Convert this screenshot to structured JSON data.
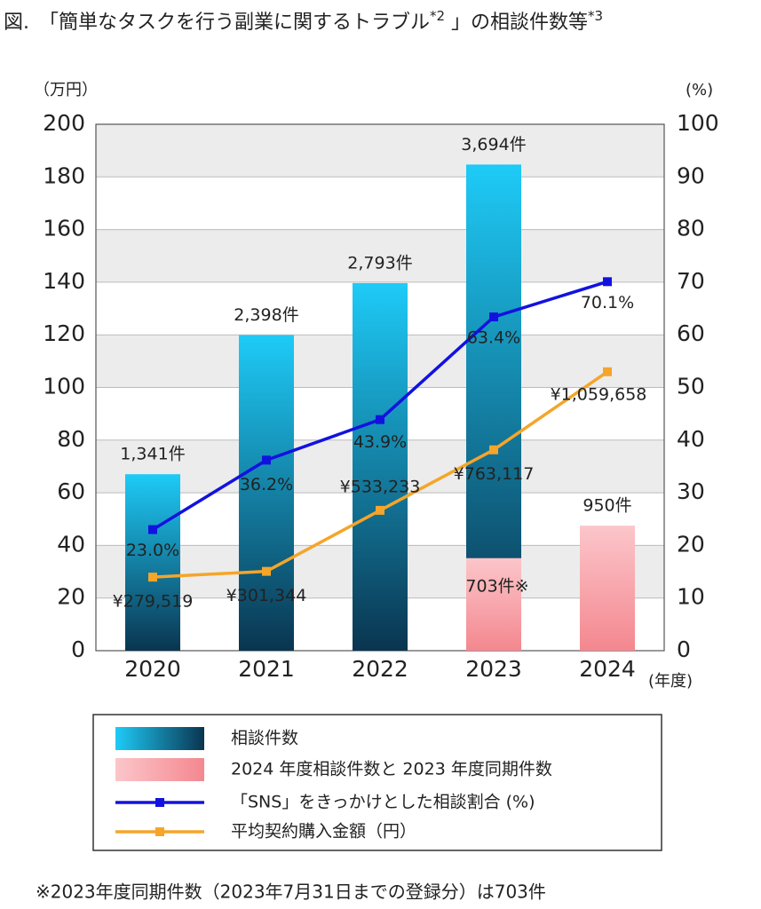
{
  "chart_data": {
    "type": "bar_line",
    "title_parts": [
      "図.　「簡単なタスクを行う副業に関するトラブル",
      "*2",
      " 」の相談件数等",
      "*3"
    ],
    "y_unit": "（万円）",
    "y2_unit": "(%)",
    "x_unit": "(年度)",
    "categories": [
      "2020",
      "2021",
      "2022",
      "2023",
      "2024"
    ],
    "ylim": [
      0,
      200
    ],
    "yticks": [
      0,
      20,
      40,
      60,
      80,
      100,
      120,
      140,
      160,
      180,
      200
    ],
    "y2lim": [
      0,
      100
    ],
    "y2ticks": [
      0,
      10,
      20,
      30,
      40,
      50,
      60,
      70,
      80,
      90,
      100
    ],
    "y3lim": [
      0,
      4000
    ],
    "grid": true,
    "series": [
      {
        "name": "相談件数",
        "kind": "bar",
        "axis": "y3",
        "color": [
          "#1ecbf7",
          "#0a3550"
        ],
        "values": [
          1341,
          2398,
          2793,
          3694,
          null
        ],
        "value_labels": [
          "1,341件",
          "2,398件",
          "2,793件",
          "3,694件",
          null
        ]
      },
      {
        "name": "2024 年度相談件数と 2023 年度同期件数",
        "kind": "bar",
        "axis": "y3",
        "color": [
          "#fbc6ca",
          "#f4878f"
        ],
        "values": [
          null,
          null,
          null,
          703,
          950
        ],
        "value_labels": [
          null,
          null,
          null,
          "703件※",
          "950件"
        ]
      },
      {
        "name": "「SNS」をきっかけとした相談割合 (%)",
        "kind": "line",
        "axis": "y2",
        "color": "#1212e0",
        "values": [
          23.0,
          36.2,
          43.9,
          63.4,
          70.1
        ],
        "value_labels": [
          "23.0%",
          "36.2%",
          "43.9%",
          "63.4%",
          "70.1%"
        ]
      },
      {
        "name": "平均契約購入金額（円）",
        "kind": "line",
        "axis": "y",
        "color": "#f5a52a",
        "values": [
          27.9519,
          30.1344,
          53.3233,
          76.3117,
          105.9658
        ],
        "value_labels": [
          "¥279,519",
          "¥301,344",
          "¥533,233",
          "¥763,117",
          "¥1,059,658"
        ]
      }
    ],
    "footnote": "※2023年度同期件数（2023年7月31日までの登録分）は703件"
  }
}
